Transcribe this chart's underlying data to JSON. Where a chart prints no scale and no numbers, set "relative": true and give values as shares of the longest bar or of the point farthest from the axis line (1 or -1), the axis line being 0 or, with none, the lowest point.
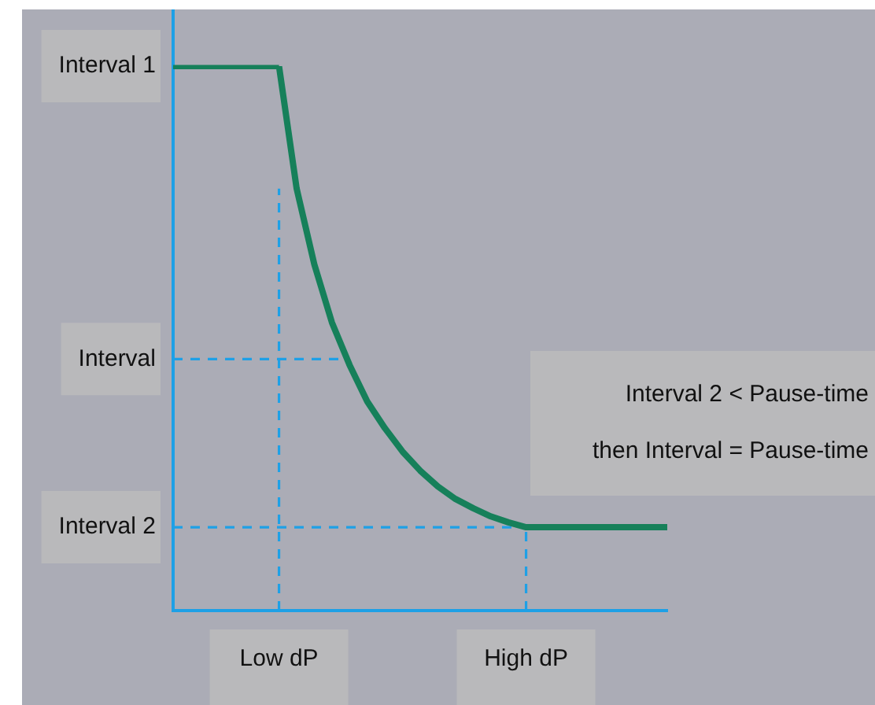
{
  "chart_data": {
    "type": "line",
    "relative": true,
    "marker": "none",
    "categories": [
      null,
      null,
      null,
      null,
      null,
      null,
      "Low dP",
      null,
      null,
      null,
      null,
      null,
      null,
      null,
      null,
      null,
      null,
      null,
      null,
      null,
      "High dP",
      null,
      null,
      null,
      null,
      null,
      null,
      null,
      null
    ],
    "series": [
      {
        "color": "#16805a",
        "values": [
          1,
          1,
          1,
          1,
          1,
          1,
          1,
          0.775,
          0.636,
          0.529,
          0.451,
          0.384,
          0.335,
          0.292,
          0.257,
          0.228,
          0.205,
          0.188,
          0.173,
          0.162,
          0.153,
          0.153,
          0.153,
          0.153,
          0.153,
          0.153,
          0.153,
          0.153,
          0.153
        ]
      }
    ],
    "ref_lines": [
      {
        "axis": "y",
        "value": 1,
        "label": "Interval 1",
        "color": "#16805a",
        "line_style": "solid"
      },
      {
        "axis": "y",
        "value": 0.462,
        "label": "Interval",
        "color": "#1ea0e6",
        "line_style": "dashed"
      },
      {
        "axis": "y",
        "value": 0.153,
        "label": "Interval 2",
        "color": "#1ea0e6",
        "line_style": "dashed"
      },
      {
        "axis": "x",
        "value": "Low dP",
        "color": "#1ea0e6",
        "line_style": "dashed"
      },
      {
        "axis": "x",
        "value": "High dP",
        "color": "#1ea0e6",
        "line_style": "dashed"
      }
    ],
    "annotations": [
      "Interval 2 < Pause-time",
      "then Interval = Pause-time"
    ]
  }
}
